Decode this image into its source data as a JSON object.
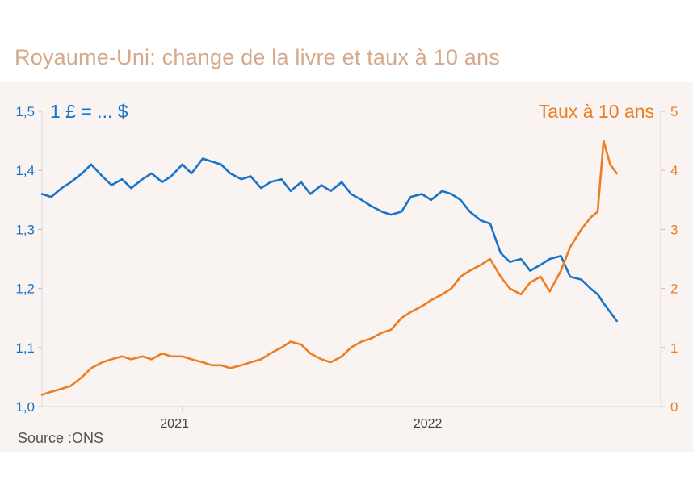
{
  "title": "Royaume-Uni: change de la livre et taux à 10 ans",
  "source": "Source :ONS",
  "colors": {
    "gbpusd": "#1874c8",
    "yield10y": "#ed7d22",
    "title": "#d4a98c",
    "background": "#f9f4f1"
  },
  "chart_data": {
    "type": "line",
    "title": "Royaume-Uni: change de la livre et taux à 10 ans",
    "x_axis": {
      "type": "date",
      "range": [
        "2020-06-01",
        "2022-12-31"
      ],
      "tick_labels": [
        "2021",
        "2022"
      ]
    },
    "y_left": {
      "label": "1 £ = ... $",
      "range": [
        1.0,
        1.5
      ],
      "ticks": [
        "1,0",
        "1,1",
        "1,2",
        "1,3",
        "1,4",
        "1,5"
      ]
    },
    "y_right": {
      "label": "Taux à 10 ans",
      "range": [
        0,
        5
      ],
      "ticks": [
        "0",
        "1",
        "2",
        "3",
        "4",
        "5"
      ]
    },
    "grid": false,
    "legend": "none",
    "series": [
      {
        "name": "1 £ = ... $",
        "axis": "left",
        "x": [
          "2020-06-01",
          "2020-06-15",
          "2020-07-01",
          "2020-07-15",
          "2020-08-01",
          "2020-08-15",
          "2020-09-01",
          "2020-09-15",
          "2020-10-01",
          "2020-10-15",
          "2020-11-01",
          "2020-11-15",
          "2020-12-01",
          "2020-12-15",
          "2021-01-01",
          "2021-01-15",
          "2021-02-01",
          "2021-02-15",
          "2021-03-01",
          "2021-03-15",
          "2021-04-01",
          "2021-04-15",
          "2021-05-01",
          "2021-05-15",
          "2021-06-01",
          "2021-06-15",
          "2021-07-01",
          "2021-07-15",
          "2021-08-01",
          "2021-08-15",
          "2021-09-01",
          "2021-09-15",
          "2021-10-01",
          "2021-10-15",
          "2021-11-01",
          "2021-11-15",
          "2021-12-01",
          "2021-12-15",
          "2022-01-01",
          "2022-01-15",
          "2022-02-01",
          "2022-02-15",
          "2022-03-01",
          "2022-03-15",
          "2022-04-01",
          "2022-04-15",
          "2022-05-01",
          "2022-05-15",
          "2022-06-01",
          "2022-06-15",
          "2022-07-01",
          "2022-07-15",
          "2022-08-01",
          "2022-08-15",
          "2022-09-01",
          "2022-09-15",
          "2022-09-26",
          "2022-10-05",
          "2022-10-15",
          "2022-10-25"
        ],
        "values": [
          1.36,
          1.355,
          1.37,
          1.38,
          1.395,
          1.41,
          1.39,
          1.375,
          1.385,
          1.37,
          1.385,
          1.395,
          1.38,
          1.39,
          1.41,
          1.395,
          1.42,
          1.415,
          1.41,
          1.395,
          1.385,
          1.39,
          1.37,
          1.38,
          1.385,
          1.365,
          1.38,
          1.36,
          1.375,
          1.365,
          1.38,
          1.36,
          1.35,
          1.34,
          1.33,
          1.325,
          1.33,
          1.355,
          1.36,
          1.35,
          1.365,
          1.36,
          1.35,
          1.33,
          1.315,
          1.31,
          1.26,
          1.245,
          1.25,
          1.23,
          1.24,
          1.25,
          1.255,
          1.22,
          1.215,
          1.2,
          1.19,
          1.175,
          1.16,
          1.145
        ]
      },
      {
        "name": "Taux à 10 ans",
        "axis": "right",
        "x": [
          "2020-06-01",
          "2020-06-15",
          "2020-07-01",
          "2020-07-15",
          "2020-08-01",
          "2020-08-15",
          "2020-09-01",
          "2020-09-15",
          "2020-10-01",
          "2020-10-15",
          "2020-11-01",
          "2020-11-15",
          "2020-12-01",
          "2020-12-15",
          "2021-01-01",
          "2021-01-15",
          "2021-02-01",
          "2021-02-15",
          "2021-03-01",
          "2021-03-15",
          "2021-04-01",
          "2021-04-15",
          "2021-05-01",
          "2021-05-15",
          "2021-06-01",
          "2021-06-15",
          "2021-07-01",
          "2021-07-15",
          "2021-08-01",
          "2021-08-15",
          "2021-09-01",
          "2021-09-15",
          "2021-10-01",
          "2021-10-15",
          "2021-11-01",
          "2021-11-15",
          "2021-12-01",
          "2021-12-15",
          "2022-01-01",
          "2022-01-15",
          "2022-02-01",
          "2022-02-15",
          "2022-03-01",
          "2022-03-15",
          "2022-04-01",
          "2022-04-15",
          "2022-05-01",
          "2022-05-15",
          "2022-06-01",
          "2022-06-15",
          "2022-07-01",
          "2022-07-15",
          "2022-08-01",
          "2022-08-15",
          "2022-09-01",
          "2022-09-15",
          "2022-09-26",
          "2022-10-05",
          "2022-10-15",
          "2022-10-25"
        ],
        "values": [
          0.2,
          0.25,
          0.3,
          0.35,
          0.5,
          0.65,
          0.75,
          0.8,
          0.85,
          0.8,
          0.85,
          0.8,
          0.9,
          0.85,
          0.85,
          0.8,
          0.75,
          0.7,
          0.7,
          0.65,
          0.7,
          0.75,
          0.8,
          0.9,
          1.0,
          1.1,
          1.05,
          0.9,
          0.8,
          0.75,
          0.85,
          1.0,
          1.1,
          1.15,
          1.25,
          1.3,
          1.5,
          1.6,
          1.7,
          1.8,
          1.9,
          2.0,
          2.2,
          2.3,
          2.4,
          2.5,
          2.2,
          2.0,
          1.9,
          2.1,
          2.2,
          1.95,
          2.3,
          2.7,
          3.0,
          3.2,
          3.3,
          4.5,
          4.1,
          3.95
        ]
      }
    ]
  }
}
